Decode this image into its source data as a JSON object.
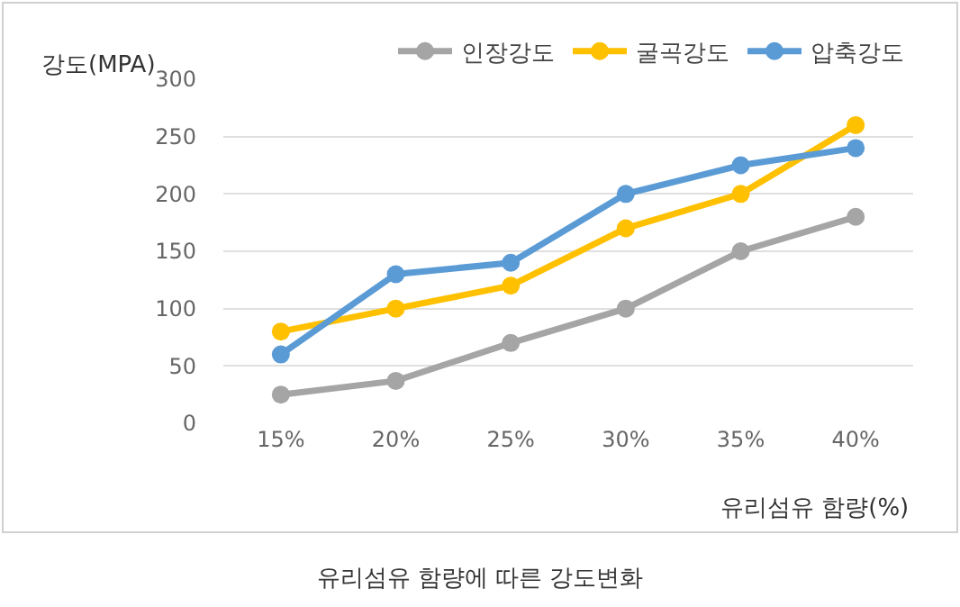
{
  "chart_data": {
    "type": "line",
    "title": "유리섬유 함량에 따른 강도변화",
    "ylabel": "강도(MPA)",
    "xlabel": "유리섬유 함량(%)",
    "categories": [
      "15%",
      "20%",
      "25%",
      "30%",
      "35%",
      "40%"
    ],
    "series": [
      {
        "name": "인장강도",
        "color": "#a5a5a5",
        "values": [
          25,
          37,
          70,
          100,
          150,
          180
        ]
      },
      {
        "name": "굴곡강도",
        "color": "#ffc000",
        "values": [
          80,
          100,
          120,
          170,
          200,
          260
        ]
      },
      {
        "name": "압축강도",
        "color": "#5b9bd5",
        "values": [
          60,
          130,
          140,
          200,
          225,
          240
        ]
      }
    ],
    "ylim": [
      0,
      300
    ],
    "yticks": [
      0,
      50,
      100,
      150,
      200,
      250,
      300
    ],
    "grid": "y",
    "legend": "top right",
    "marker": "circle",
    "line_style": "solid"
  }
}
